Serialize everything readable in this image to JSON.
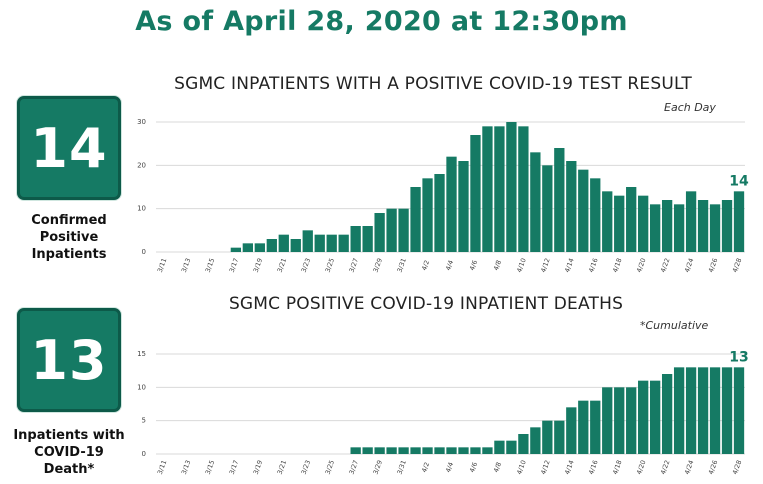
{
  "headline": "As of April 28, 2020 at 12:30pm",
  "stats": [
    {
      "value": "14",
      "label_lines": [
        "Confirmed",
        "Positive",
        "Inpatients"
      ]
    },
    {
      "value": "13",
      "label_lines": [
        "Inpatients with",
        "COVID-19",
        "Death*"
      ]
    }
  ],
  "colors": {
    "brand": "#157a64",
    "bar": "#157a64",
    "grid": "#d9d9d9"
  },
  "chart_data": [
    {
      "type": "bar",
      "title": "SGMC INPATIENTS WITH A POSITIVE COVID-19 TEST RESULT",
      "note": "Each Day",
      "xlabel": "",
      "ylabel": "",
      "ylim": [
        0,
        30
      ],
      "yticks": [
        0,
        10,
        20,
        30
      ],
      "grid": true,
      "x_tick_labels": [
        "3/11",
        "3/13",
        "3/15",
        "3/17",
        "3/19",
        "3/21",
        "3/23",
        "3/25",
        "3/27",
        "3/29",
        "3/31",
        "4/2",
        "4/4",
        "4/6",
        "4/8",
        "4/10",
        "4/12",
        "4/14",
        "4/16",
        "4/18",
        "4/20",
        "4/22",
        "4/24",
        "4/26",
        "4/28"
      ],
      "categories": [
        "3/11",
        "3/12",
        "3/13",
        "3/14",
        "3/15",
        "3/16",
        "3/17",
        "3/18",
        "3/19",
        "3/20",
        "3/21",
        "3/22",
        "3/23",
        "3/24",
        "3/25",
        "3/26",
        "3/27",
        "3/28",
        "3/29",
        "3/30",
        "3/31",
        "4/1",
        "4/2",
        "4/3",
        "4/4",
        "4/5",
        "4/6",
        "4/7",
        "4/8",
        "4/9",
        "4/10",
        "4/11",
        "4/12",
        "4/13",
        "4/14",
        "4/15",
        "4/16",
        "4/17",
        "4/18",
        "4/19",
        "4/20",
        "4/21",
        "4/22",
        "4/23",
        "4/24",
        "4/25",
        "4/26",
        "4/27",
        "4/28"
      ],
      "values": [
        0,
        0,
        0,
        0,
        0,
        0,
        1,
        2,
        2,
        3,
        4,
        3,
        5,
        4,
        4,
        4,
        6,
        6,
        9,
        10,
        10,
        15,
        17,
        18,
        22,
        21,
        27,
        29,
        29,
        30,
        29,
        23,
        20,
        24,
        21,
        19,
        17,
        14,
        13,
        15,
        13,
        11,
        12,
        11,
        14,
        12,
        11,
        12,
        14
      ],
      "last_value_label": "14"
    },
    {
      "type": "bar",
      "title": "SGMC POSITIVE COVID-19 INPATIENT DEATHS",
      "note": "*Cumulative",
      "xlabel": "",
      "ylabel": "",
      "ylim": [
        0,
        15
      ],
      "yticks": [
        0,
        5,
        10,
        15
      ],
      "grid": true,
      "x_tick_labels": [
        "3/11",
        "3/13",
        "3/15",
        "3/17",
        "3/19",
        "3/21",
        "3/23",
        "3/25",
        "3/27",
        "3/29",
        "3/31",
        "4/2",
        "4/4",
        "4/6",
        "4/8",
        "4/10",
        "4/12",
        "4/14",
        "4/16",
        "4/18",
        "4/20",
        "4/22",
        "4/24",
        "4/26",
        "4/28"
      ],
      "categories": [
        "3/11",
        "3/12",
        "3/13",
        "3/14",
        "3/15",
        "3/16",
        "3/17",
        "3/18",
        "3/19",
        "3/20",
        "3/21",
        "3/22",
        "3/23",
        "3/24",
        "3/25",
        "3/26",
        "3/27",
        "3/28",
        "3/29",
        "3/30",
        "3/31",
        "4/1",
        "4/2",
        "4/3",
        "4/4",
        "4/5",
        "4/6",
        "4/7",
        "4/8",
        "4/9",
        "4/10",
        "4/11",
        "4/12",
        "4/13",
        "4/14",
        "4/15",
        "4/16",
        "4/17",
        "4/18",
        "4/19",
        "4/20",
        "4/21",
        "4/22",
        "4/23",
        "4/24",
        "4/25",
        "4/26",
        "4/27",
        "4/28"
      ],
      "values": [
        0,
        0,
        0,
        0,
        0,
        0,
        0,
        0,
        0,
        0,
        0,
        0,
        0,
        0,
        0,
        0,
        1,
        1,
        1,
        1,
        1,
        1,
        1,
        1,
        1,
        1,
        1,
        1,
        2,
        2,
        3,
        4,
        5,
        5,
        7,
        8,
        8,
        10,
        10,
        10,
        11,
        11,
        12,
        13,
        13,
        13,
        13,
        13,
        13
      ],
      "last_value_label": "13"
    }
  ]
}
